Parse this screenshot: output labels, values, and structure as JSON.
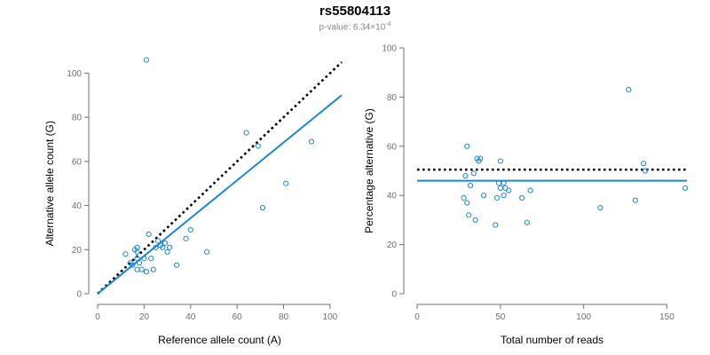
{
  "header": {
    "title": "rs55804113",
    "subtitle_prefix": "p-value: 6.34×10",
    "subtitle_exp": "-4"
  },
  "colors": {
    "points": "#1b87d6",
    "fit": "#1b87d6",
    "reference": "#000000",
    "axis": "#707070"
  },
  "chart_data": [
    {
      "type": "scatter",
      "xlabel": "Reference allele count (A)",
      "ylabel": "Alternative allele count (G)",
      "xlim": [
        0,
        105
      ],
      "ylim": [
        0,
        105
      ],
      "xticks": [
        0,
        20,
        40,
        60,
        80,
        100
      ],
      "yticks": [
        0,
        20,
        40,
        60,
        80,
        100
      ],
      "points": [
        [
          21,
          106
        ],
        [
          12,
          18
        ],
        [
          14,
          14
        ],
        [
          15,
          13
        ],
        [
          16,
          20
        ],
        [
          17,
          21
        ],
        [
          17,
          19
        ],
        [
          17,
          16
        ],
        [
          17,
          11
        ],
        [
          18,
          14
        ],
        [
          19,
          11
        ],
        [
          20,
          16
        ],
        [
          21,
          10
        ],
        [
          22,
          27
        ],
        [
          23,
          16
        ],
        [
          24,
          11
        ],
        [
          25,
          21
        ],
        [
          26,
          24
        ],
        [
          27,
          22
        ],
        [
          28,
          21
        ],
        [
          29,
          23
        ],
        [
          30,
          19
        ],
        [
          31,
          21
        ],
        [
          34,
          13
        ],
        [
          38,
          25
        ],
        [
          40,
          29
        ],
        [
          47,
          19
        ],
        [
          64,
          73
        ],
        [
          69,
          67
        ],
        [
          71,
          39
        ],
        [
          81,
          50
        ],
        [
          92,
          69
        ]
      ],
      "reference_line": {
        "from": [
          0,
          0
        ],
        "to": [
          105,
          105
        ],
        "style": "dotted"
      },
      "fit_line": {
        "from": [
          0,
          0
        ],
        "to": [
          105,
          90
        ],
        "style": "solid"
      },
      "grid": false
    },
    {
      "type": "scatter",
      "xlabel": "Total number of reads",
      "ylabel": "Percentage alternative (G)",
      "xlim": [
        0,
        162
      ],
      "ylim": [
        0,
        100
      ],
      "xticks": [
        0,
        50,
        100,
        150
      ],
      "yticks": [
        0,
        20,
        40,
        60,
        80,
        100
      ],
      "points": [
        [
          28,
          39
        ],
        [
          29,
          48
        ],
        [
          30,
          60
        ],
        [
          30,
          37
        ],
        [
          31,
          32
        ],
        [
          32,
          44
        ],
        [
          34,
          49
        ],
        [
          35,
          30
        ],
        [
          36,
          55
        ],
        [
          37,
          54
        ],
        [
          38,
          55
        ],
        [
          40,
          40
        ],
        [
          47,
          28
        ],
        [
          48,
          39
        ],
        [
          49,
          45
        ],
        [
          50,
          54
        ],
        [
          50,
          43
        ],
        [
          52,
          45
        ],
        [
          52,
          40
        ],
        [
          53,
          43
        ],
        [
          55,
          42
        ],
        [
          63,
          39
        ],
        [
          66,
          29
        ],
        [
          68,
          42
        ],
        [
          110,
          35
        ],
        [
          127,
          83
        ],
        [
          131,
          38
        ],
        [
          136,
          53
        ],
        [
          137,
          50
        ],
        [
          161,
          43
        ]
      ],
      "reference_line": {
        "y": 50.5,
        "style": "dotted"
      },
      "fit_line": {
        "y": 46,
        "style": "solid"
      },
      "grid": false
    }
  ]
}
